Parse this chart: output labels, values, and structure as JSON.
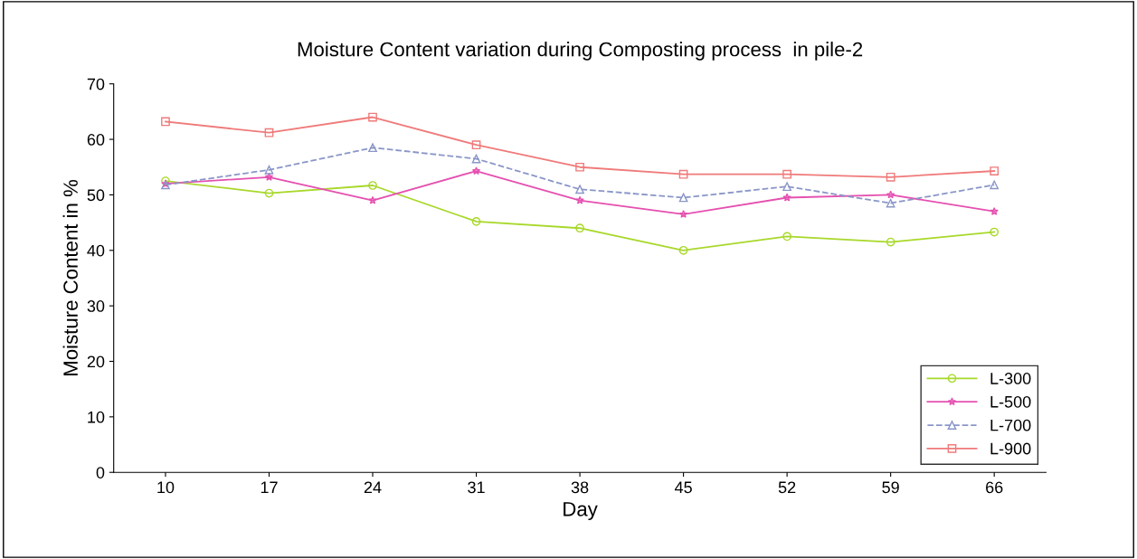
{
  "chart_data": {
    "type": "line",
    "title": "Moisture Content variation during Composting process  in pile-2",
    "xlabel": "Day",
    "ylabel": "Moisture Content in %",
    "categories": [
      "10",
      "17",
      "24",
      "31",
      "38",
      "45",
      "52",
      "59",
      "66"
    ],
    "series": [
      {
        "name": "L-300",
        "color": "#a8d82a",
        "marker": "circle",
        "line_style": "solid",
        "values": [
          52.5,
          50.3,
          51.7,
          45.2,
          44,
          40,
          42.5,
          41.5,
          43.3
        ]
      },
      {
        "name": "L-500",
        "color": "#e550b0",
        "marker": "star",
        "line_style": "solid",
        "values": [
          52,
          53.2,
          49,
          54.3,
          49,
          46.5,
          49.5,
          50,
          47
        ]
      },
      {
        "name": "L-700",
        "color": "#8a96c8",
        "marker": "triangle",
        "line_style": "dashed",
        "values": [
          51.8,
          54.5,
          58.5,
          56.5,
          51,
          49.5,
          51.5,
          48.5,
          51.8
        ]
      },
      {
        "name": "L-900",
        "color": "#f07a7a",
        "marker": "square",
        "line_style": "solid",
        "values": [
          63.2,
          61.2,
          64,
          59,
          55,
          53.7,
          53.7,
          53.2,
          54.3
        ]
      }
    ],
    "ylim": [
      0,
      70
    ],
    "yticks": [
      0,
      10,
      20,
      30,
      40,
      50,
      60,
      70
    ],
    "grid": false,
    "legend": "bottom right"
  }
}
